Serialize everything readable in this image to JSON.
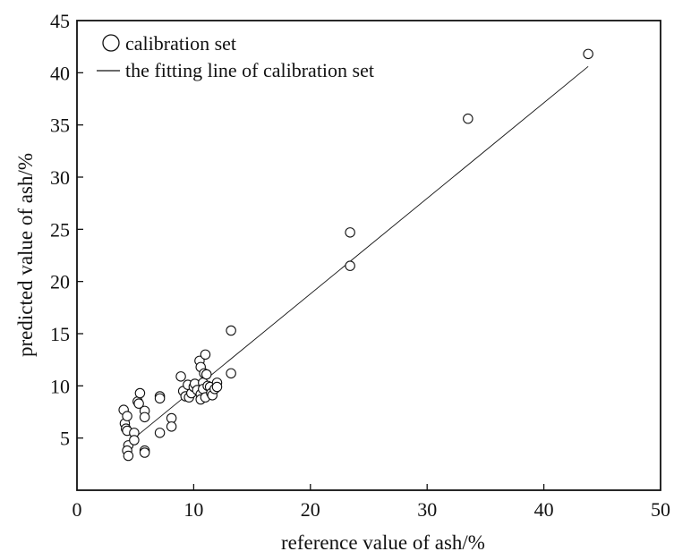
{
  "chart_data": {
    "type": "scatter",
    "xlabel": "reference value of ash/%",
    "ylabel": "predicted value of ash/%",
    "xlim": [
      0,
      50
    ],
    "ylim": [
      0,
      45
    ],
    "xticks": [
      0,
      10,
      20,
      30,
      40,
      50
    ],
    "yticks": [
      5,
      10,
      15,
      20,
      25,
      30,
      35,
      40,
      45
    ],
    "grid": false,
    "legend_position": "top-left",
    "legend": {
      "points_label": "calibration set",
      "line_label": "the fitting line of calibration set"
    },
    "fit_line": {
      "x": [
        4.8,
        43.8
      ],
      "y": [
        4.9,
        40.6
      ]
    },
    "points": [
      {
        "x": 4.0,
        "y": 7.7
      },
      {
        "x": 4.1,
        "y": 6.4
      },
      {
        "x": 4.2,
        "y": 5.9
      },
      {
        "x": 4.3,
        "y": 7.1
      },
      {
        "x": 4.3,
        "y": 5.7
      },
      {
        "x": 4.4,
        "y": 4.3
      },
      {
        "x": 4.3,
        "y": 3.8
      },
      {
        "x": 4.4,
        "y": 3.3
      },
      {
        "x": 4.9,
        "y": 5.5
      },
      {
        "x": 4.9,
        "y": 4.8
      },
      {
        "x": 5.2,
        "y": 8.5
      },
      {
        "x": 5.3,
        "y": 8.3
      },
      {
        "x": 5.4,
        "y": 9.3
      },
      {
        "x": 5.8,
        "y": 7.6
      },
      {
        "x": 5.8,
        "y": 7.0
      },
      {
        "x": 5.8,
        "y": 3.8
      },
      {
        "x": 5.8,
        "y": 3.6
      },
      {
        "x": 7.1,
        "y": 9.0
      },
      {
        "x": 7.1,
        "y": 8.8
      },
      {
        "x": 7.1,
        "y": 5.5
      },
      {
        "x": 8.1,
        "y": 6.9
      },
      {
        "x": 8.1,
        "y": 6.1
      },
      {
        "x": 8.9,
        "y": 10.9
      },
      {
        "x": 9.1,
        "y": 9.5
      },
      {
        "x": 9.3,
        "y": 9.0
      },
      {
        "x": 9.5,
        "y": 10.1
      },
      {
        "x": 9.6,
        "y": 8.9
      },
      {
        "x": 9.8,
        "y": 9.3
      },
      {
        "x": 10.0,
        "y": 9.9
      },
      {
        "x": 10.1,
        "y": 10.2
      },
      {
        "x": 10.3,
        "y": 9.6
      },
      {
        "x": 10.5,
        "y": 12.4
      },
      {
        "x": 10.6,
        "y": 11.8
      },
      {
        "x": 10.6,
        "y": 9.2
      },
      {
        "x": 10.6,
        "y": 8.7
      },
      {
        "x": 10.8,
        "y": 10.3
      },
      {
        "x": 10.8,
        "y": 9.7
      },
      {
        "x": 10.9,
        "y": 11.2
      },
      {
        "x": 11.0,
        "y": 13.0
      },
      {
        "x": 11.0,
        "y": 8.9
      },
      {
        "x": 11.1,
        "y": 11.1
      },
      {
        "x": 11.2,
        "y": 10.0
      },
      {
        "x": 11.4,
        "y": 9.9
      },
      {
        "x": 11.5,
        "y": 9.3
      },
      {
        "x": 11.6,
        "y": 9.1
      },
      {
        "x": 11.8,
        "y": 9.7
      },
      {
        "x": 12.0,
        "y": 10.3
      },
      {
        "x": 12.0,
        "y": 9.9
      },
      {
        "x": 13.2,
        "y": 15.3
      },
      {
        "x": 13.2,
        "y": 11.2
      },
      {
        "x": 23.4,
        "y": 24.7
      },
      {
        "x": 23.4,
        "y": 21.5
      },
      {
        "x": 33.5,
        "y": 35.6
      },
      {
        "x": 43.8,
        "y": 41.8
      }
    ]
  }
}
